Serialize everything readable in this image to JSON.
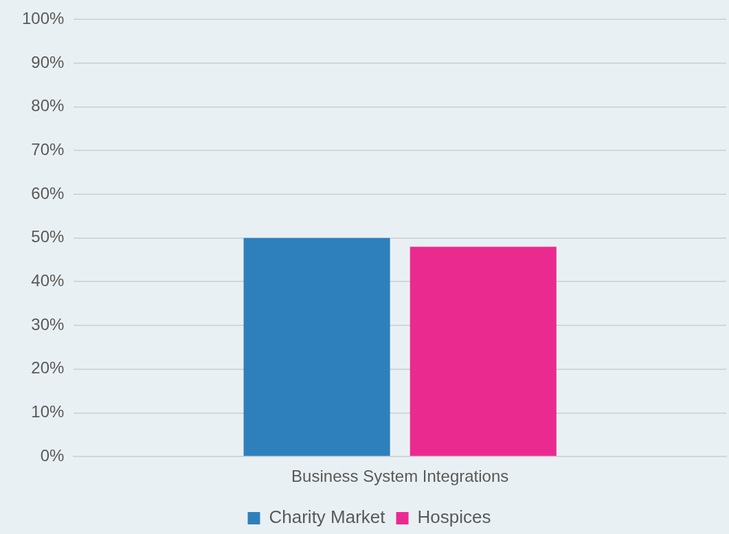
{
  "chart_data": {
    "type": "bar",
    "categories": [
      "Business System Integrations"
    ],
    "series": [
      {
        "name": "Charity Market",
        "color": "#2e80bd",
        "values": [
          50
        ]
      },
      {
        "name": "Hospices",
        "color": "#eb2a8f",
        "values": [
          48
        ]
      }
    ],
    "ylim": [
      0,
      100
    ],
    "yticks": [
      {
        "value": 0,
        "label": "0%"
      },
      {
        "value": 10,
        "label": "10%"
      },
      {
        "value": 20,
        "label": "20%"
      },
      {
        "value": 30,
        "label": "30%"
      },
      {
        "value": 40,
        "label": "40%"
      },
      {
        "value": 50,
        "label": "50%"
      },
      {
        "value": 60,
        "label": "60%"
      },
      {
        "value": 70,
        "label": "70%"
      },
      {
        "value": 80,
        "label": "80%"
      },
      {
        "value": 90,
        "label": "90%"
      },
      {
        "value": 100,
        "label": "100%"
      }
    ],
    "grid": "y",
    "legend": "bottom"
  }
}
